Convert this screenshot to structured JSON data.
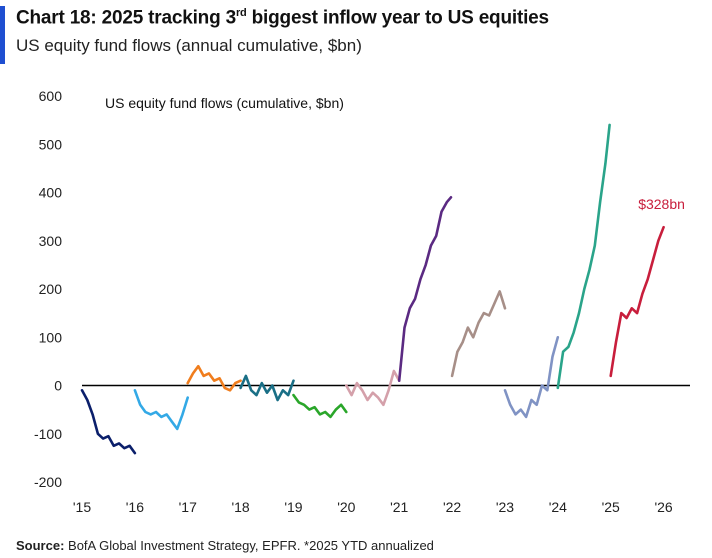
{
  "header": {
    "title_prefix": "Chart 18: 2025 tracking 3",
    "title_sup": "rd",
    "title_suffix": " biggest inflow year to US equities",
    "subtitle": "US equity fund flows (annual cumulative, $bn)"
  },
  "footer": {
    "source_label": "Source:",
    "source_text": " BofA Global Investment Strategy, EPFR. *2025 YTD annualized"
  },
  "colors": {
    "accent": "#1f4fd1"
  },
  "chart_data": {
    "type": "line",
    "title": "US equity fund flows (cumulative, $bn)",
    "xlabel": "",
    "ylabel": "",
    "xlim": [
      2015,
      2026.5
    ],
    "ylim": [
      -200,
      600
    ],
    "yticks": [
      600,
      500,
      400,
      300,
      200,
      100,
      0,
      -100,
      -200
    ],
    "ytick_labels": [
      "600",
      "500",
      "400",
      "300",
      "200",
      "100",
      "0",
      "-100",
      "-200"
    ],
    "xticks": [
      2015,
      2016,
      2017,
      2018,
      2019,
      2020,
      2021,
      2022,
      2023,
      2024,
      2025,
      2026
    ],
    "xtick_labels": [
      "'15",
      "'16",
      "'17",
      "'18",
      "'19",
      "'20",
      "'21",
      "'22",
      "'23",
      "'24",
      "'25",
      "'26"
    ],
    "grid": false,
    "zero_line": true,
    "annotation": {
      "text": "$328bn",
      "x": 2026,
      "y": 328,
      "color": "#c81e3c"
    },
    "series": [
      {
        "year": 2015,
        "color": "#0b1f6b",
        "x": [
          2015.0,
          2015.1,
          2015.2,
          2015.3,
          2015.4,
          2015.5,
          2015.6,
          2015.7,
          2015.8,
          2015.9,
          2016.0
        ],
        "y": [
          -10,
          -30,
          -60,
          -100,
          -110,
          -105,
          -125,
          -120,
          -130,
          -125,
          -140
        ]
      },
      {
        "year": 2016,
        "color": "#33a9e6",
        "x": [
          2016.0,
          2016.1,
          2016.2,
          2016.3,
          2016.4,
          2016.5,
          2016.6,
          2016.7,
          2016.8,
          2016.9,
          2017.0
        ],
        "y": [
          -10,
          -40,
          -55,
          -60,
          -55,
          -65,
          -60,
          -75,
          -90,
          -60,
          -25
        ]
      },
      {
        "year": 2017,
        "color": "#f07d1d",
        "x": [
          2017.0,
          2017.1,
          2017.2,
          2017.3,
          2017.4,
          2017.5,
          2017.6,
          2017.7,
          2017.8,
          2017.9,
          2018.0
        ],
        "y": [
          5,
          25,
          40,
          20,
          25,
          10,
          15,
          -5,
          -10,
          5,
          10
        ]
      },
      {
        "year": 2018,
        "color": "#1a6f86",
        "x": [
          2018.0,
          2018.1,
          2018.2,
          2018.3,
          2018.4,
          2018.5,
          2018.6,
          2018.7,
          2018.8,
          2018.9,
          2019.0
        ],
        "y": [
          -5,
          20,
          -10,
          -20,
          5,
          -15,
          0,
          -30,
          -10,
          -20,
          10
        ]
      },
      {
        "year": 2019,
        "color": "#2aa62a",
        "x": [
          2019.0,
          2019.1,
          2019.2,
          2019.3,
          2019.4,
          2019.5,
          2019.6,
          2019.7,
          2019.8,
          2019.9,
          2020.0
        ],
        "y": [
          -20,
          -35,
          -40,
          -50,
          -45,
          -60,
          -55,
          -65,
          -50,
          -40,
          -55
        ]
      },
      {
        "year": 2020,
        "color": "#d4a0aa",
        "x": [
          2020.0,
          2020.1,
          2020.2,
          2020.3,
          2020.4,
          2020.5,
          2020.6,
          2020.7,
          2020.8,
          2020.9,
          2021.0
        ],
        "y": [
          0,
          -20,
          5,
          -10,
          -30,
          -15,
          -25,
          -40,
          -10,
          30,
          10
        ]
      },
      {
        "year": 2021,
        "color": "#5b2a82",
        "x": [
          2021.0,
          2021.1,
          2021.2,
          2021.3,
          2021.4,
          2021.5,
          2021.6,
          2021.7,
          2021.8,
          2021.9,
          2021.98
        ],
        "y": [
          10,
          120,
          160,
          180,
          220,
          250,
          290,
          310,
          360,
          380,
          390
        ]
      },
      {
        "year": 2022,
        "color": "#a78f88",
        "x": [
          2022.0,
          2022.1,
          2022.2,
          2022.3,
          2022.4,
          2022.5,
          2022.6,
          2022.7,
          2022.8,
          2022.9,
          2023.0
        ],
        "y": [
          20,
          70,
          90,
          120,
          100,
          130,
          150,
          145,
          170,
          195,
          160
        ]
      },
      {
        "year": 2023,
        "color": "#8093c4",
        "x": [
          2023.0,
          2023.1,
          2023.2,
          2023.3,
          2023.4,
          2023.5,
          2023.6,
          2023.7,
          2023.8,
          2023.9,
          2024.0
        ],
        "y": [
          -10,
          -40,
          -60,
          -50,
          -65,
          -30,
          -40,
          0,
          -10,
          60,
          100
        ]
      },
      {
        "year": 2024,
        "color": "#2aa48a",
        "x": [
          2024.0,
          2024.1,
          2024.2,
          2024.3,
          2024.4,
          2024.5,
          2024.6,
          2024.7,
          2024.8,
          2024.9,
          2024.98
        ],
        "y": [
          -5,
          70,
          80,
          110,
          150,
          200,
          240,
          290,
          380,
          460,
          540
        ]
      },
      {
        "year": 2025,
        "color": "#c81e3c",
        "x": [
          2025.0,
          2025.1,
          2025.2,
          2025.3,
          2025.4,
          2025.5,
          2025.6,
          2025.7,
          2025.8,
          2025.9,
          2026.0
        ],
        "y": [
          20,
          90,
          150,
          140,
          160,
          150,
          190,
          220,
          260,
          300,
          328
        ]
      }
    ]
  }
}
